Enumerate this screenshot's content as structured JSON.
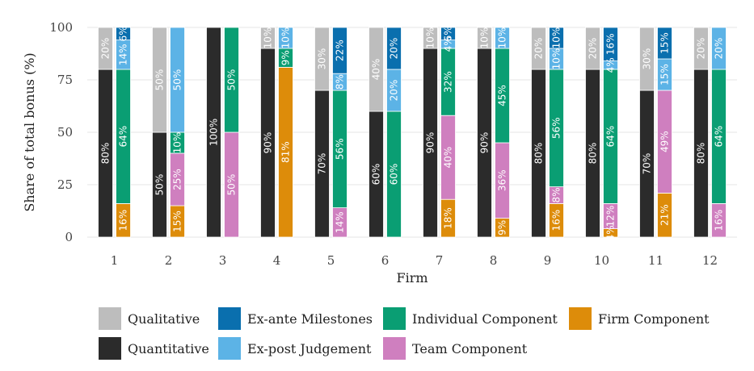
{
  "chart_data": {
    "type": "bar",
    "subtype": "paired-stacked-percent",
    "ylabel": "Share of total bonus (%)",
    "xlabel": "Firm",
    "ylim": [
      0,
      100
    ],
    "yticks": [
      "0",
      "25",
      "50",
      "75",
      "100"
    ],
    "categories": [
      "1",
      "2",
      "3",
      "4",
      "5",
      "6",
      "7",
      "8",
      "9",
      "10",
      "11",
      "12"
    ],
    "colors": {
      "Qualitative": "#bdbdbd",
      "Quantitative": "#2b2b2b",
      "Ex-ante Milestones": "#0a6fae",
      "Ex-post Judgement": "#5cb3e6",
      "Individual Component": "#0a9e73",
      "Team Component": "#cf7fbf",
      "Firm Component": "#dd8c0a"
    },
    "legend": [
      "Qualitative",
      "Quantitative",
      "Ex-ante Milestones",
      "Ex-post Judgement",
      "Individual Component",
      "Team Component",
      "Firm Component"
    ],
    "legend_rows": [
      [
        "Qualitative",
        "Ex-ante Milestones",
        "Individual Component",
        "Firm Component"
      ],
      [
        "Quantitative",
        "Ex-post Judgement",
        "Team Component"
      ]
    ],
    "left_stack_order": [
      "Quantitative",
      "Qualitative"
    ],
    "right_stack_order": [
      "Firm Component",
      "Team Component",
      "Individual Component",
      "Ex-post Judgement",
      "Ex-ante Milestones"
    ],
    "firms": [
      {
        "firm": "1",
        "left": {
          "Quantitative": 80,
          "Qualitative": 20
        },
        "right": {
          "Firm Component": 16,
          "Team Component": 0,
          "Individual Component": 64,
          "Ex-post Judgement": 14,
          "Ex-ante Milestones": 6
        }
      },
      {
        "firm": "2",
        "left": {
          "Quantitative": 50,
          "Qualitative": 50
        },
        "right": {
          "Firm Component": 15,
          "Team Component": 25,
          "Individual Component": 10,
          "Ex-post Judgement": 50,
          "Ex-ante Milestones": 0
        }
      },
      {
        "firm": "3",
        "left": {
          "Quantitative": 100,
          "Qualitative": 0
        },
        "right": {
          "Firm Component": 0,
          "Team Component": 50,
          "Individual Component": 50,
          "Ex-post Judgement": 0,
          "Ex-ante Milestones": 0
        }
      },
      {
        "firm": "4",
        "left": {
          "Quantitative": 90,
          "Qualitative": 10
        },
        "right": {
          "Firm Component": 81,
          "Team Component": 0,
          "Individual Component": 9,
          "Ex-post Judgement": 10,
          "Ex-ante Milestones": 0
        }
      },
      {
        "firm": "5",
        "left": {
          "Quantitative": 70,
          "Qualitative": 30
        },
        "right": {
          "Firm Component": 0,
          "Team Component": 14,
          "Individual Component": 56,
          "Ex-post Judgement": 8,
          "Ex-ante Milestones": 22
        }
      },
      {
        "firm": "6",
        "left": {
          "Quantitative": 60,
          "Qualitative": 40
        },
        "right": {
          "Firm Component": 0,
          "Team Component": 0,
          "Individual Component": 60,
          "Ex-post Judgement": 20,
          "Ex-ante Milestones": 20
        }
      },
      {
        "firm": "7",
        "left": {
          "Quantitative": 90,
          "Qualitative": 10
        },
        "right": {
          "Firm Component": 18,
          "Team Component": 40,
          "Individual Component": 32,
          "Ex-post Judgement": 4,
          "Ex-ante Milestones": 6
        }
      },
      {
        "firm": "8",
        "left": {
          "Quantitative": 90,
          "Qualitative": 10
        },
        "right": {
          "Firm Component": 9,
          "Team Component": 36,
          "Individual Component": 45,
          "Ex-post Judgement": 10,
          "Ex-ante Milestones": 0
        }
      },
      {
        "firm": "9",
        "left": {
          "Quantitative": 80,
          "Qualitative": 20
        },
        "right": {
          "Firm Component": 16,
          "Team Component": 8,
          "Individual Component": 56,
          "Ex-post Judgement": 10,
          "Ex-ante Milestones": 10
        }
      },
      {
        "firm": "10",
        "left": {
          "Quantitative": 80,
          "Qualitative": 20
        },
        "right": {
          "Firm Component": 4,
          "Team Component": 12,
          "Individual Component": 64,
          "Ex-post Judgement": 4,
          "Ex-ante Milestones": 16
        }
      },
      {
        "firm": "11",
        "left": {
          "Quantitative": 70,
          "Qualitative": 30
        },
        "right": {
          "Firm Component": 21,
          "Team Component": 49,
          "Individual Component": 0,
          "Ex-post Judgement": 15,
          "Ex-ante Milestones": 15
        }
      },
      {
        "firm": "12",
        "left": {
          "Quantitative": 80,
          "Qualitative": 20
        },
        "right": {
          "Firm Component": 0,
          "Team Component": 16,
          "Individual Component": 64,
          "Ex-post Judgement": 20,
          "Ex-ante Milestones": 0
        }
      }
    ]
  }
}
